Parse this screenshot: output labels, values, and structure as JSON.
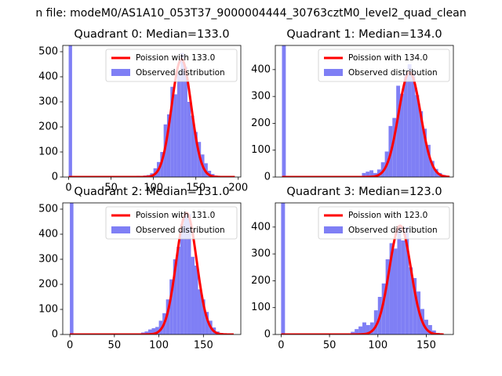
{
  "figure": {
    "suptitle": "n file: modeM0/AS1A10_053T37_9000004444_30763cztM0_level2_quad_clean"
  },
  "colors": {
    "hist": "#7f7ff5",
    "fit": "#ff0000",
    "axis": "#000000",
    "background": "#ffffff"
  },
  "chart_data": [
    {
      "type": "bar",
      "title": "Quadrant 0: Median=133.0",
      "xlim": [
        -7,
        203
      ],
      "ylim": [
        0,
        525
      ],
      "xticks": [
        0,
        50,
        100,
        150,
        200
      ],
      "xtick_labels": [
        "0",
        "50",
        "100",
        "150",
        "200"
      ],
      "yticks": [
        0,
        100,
        200,
        300,
        400,
        500
      ],
      "ytick_labels": [
        "0",
        "100",
        "200",
        "300",
        "400",
        "500"
      ],
      "legend_location": "upper right",
      "fit": {
        "label": "Poission with 133.0",
        "mean": 133,
        "peak": 470
      },
      "hist": {
        "label": "Observed distribution",
        "bin_width": 4,
        "edges": [
          0,
          76,
          80,
          84,
          88,
          92,
          96,
          100,
          104,
          108,
          112,
          116,
          120,
          124,
          128,
          132,
          136,
          140,
          144,
          148,
          152,
          156,
          160,
          164,
          168,
          172,
          176,
          180,
          184,
          188,
          192
        ],
        "counts": [
          525,
          3,
          5,
          4,
          6,
          8,
          15,
          35,
          60,
          100,
          210,
          250,
          360,
          330,
          420,
          495,
          440,
          300,
          245,
          180,
          140,
          90,
          55,
          25,
          12,
          6,
          4,
          3,
          2,
          1
        ]
      }
    },
    {
      "type": "bar",
      "title": "Quadrant 1: Median=134.0",
      "xlim": [
        -7,
        180
      ],
      "ylim": [
        0,
        490
      ],
      "xticks": [],
      "xtick_labels": [],
      "yticks": [
        0,
        100,
        200,
        300,
        400
      ],
      "ytick_labels": [
        "0",
        "100",
        "200",
        "300",
        "400"
      ],
      "legend_location": "upper right",
      "fit": {
        "label": "Poission with 134.0",
        "mean": 134,
        "peak": 390
      },
      "hist": {
        "label": "Observed distribution",
        "bin_width": 4,
        "edges": [
          0,
          84,
          88,
          92,
          96,
          100,
          104,
          108,
          112,
          116,
          120,
          124,
          128,
          132,
          136,
          140,
          144,
          148,
          152,
          156,
          160,
          164,
          168,
          172
        ],
        "counts": [
          490,
          15,
          20,
          25,
          15,
          28,
          55,
          95,
          190,
          220,
          340,
          310,
          390,
          420,
          390,
          305,
          245,
          180,
          120,
          60,
          30,
          15,
          8
        ]
      }
    },
    {
      "type": "bar",
      "title": "Quadrant 2: Median=131.0",
      "xlim": [
        -8,
        192
      ],
      "ylim": [
        0,
        525
      ],
      "xticks": [
        0,
        50,
        100,
        150
      ],
      "xtick_labels": [
        "0",
        "50",
        "100",
        "150"
      ],
      "yticks": [
        0,
        100,
        200,
        300,
        400,
        500
      ],
      "ytick_labels": [
        "0",
        "100",
        "200",
        "300",
        "400",
        "500"
      ],
      "legend_location": "upper right",
      "fit": {
        "label": "Poission with 131.0",
        "mean": 131,
        "peak": 485
      },
      "hist": {
        "label": "Observed distribution",
        "bin_width": 4,
        "edges": [
          0,
          76,
          80,
          84,
          88,
          92,
          96,
          100,
          104,
          108,
          112,
          116,
          120,
          124,
          128,
          132,
          136,
          140,
          144,
          148,
          152,
          156,
          160,
          164,
          168,
          172,
          176,
          180
        ],
        "counts": [
          525,
          3,
          8,
          12,
          20,
          25,
          30,
          55,
          85,
          140,
          220,
          300,
          350,
          440,
          480,
          480,
          310,
          275,
          180,
          140,
          90,
          55,
          28,
          12,
          6,
          4,
          2
        ]
      }
    },
    {
      "type": "bar",
      "title": "Quadrant 3: Median=123.0",
      "xlim": [
        -6,
        178
      ],
      "ylim": [
        0,
        490
      ],
      "xticks": [
        0,
        50,
        100,
        150
      ],
      "xtick_labels": [
        "0",
        "50",
        "100",
        "150"
      ],
      "yticks": [
        0,
        100,
        200,
        300,
        400
      ],
      "ytick_labels": [
        "0",
        "100",
        "200",
        "300",
        "400"
      ],
      "legend_location": "upper right",
      "fit": {
        "label": "Poission with 123.0",
        "mean": 123,
        "peak": 405
      },
      "hist": {
        "label": "Observed distribution",
        "bin_width": 4,
        "edges": [
          0,
          72,
          76,
          80,
          84,
          88,
          92,
          96,
          100,
          104,
          108,
          112,
          116,
          120,
          124,
          128,
          132,
          136,
          140,
          144,
          148,
          152,
          156,
          160,
          164
        ],
        "counts": [
          490,
          10,
          20,
          30,
          45,
          35,
          45,
          90,
          140,
          190,
          280,
          340,
          320,
          400,
          350,
          400,
          250,
          210,
          160,
          95,
          55,
          35,
          15,
          6
        ]
      }
    }
  ]
}
